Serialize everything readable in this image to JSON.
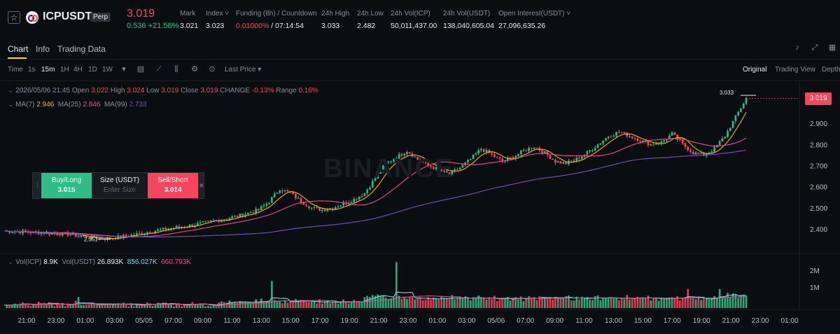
{
  "header": {
    "symbol": "ICPUSDT",
    "badge": "Perp",
    "last_price": "3.019",
    "change": "0.536 +21.58%",
    "stats": [
      {
        "label": "Mark",
        "value": "3.021"
      },
      {
        "label": "Index ˅",
        "value": "3.023"
      },
      {
        "label": "Funding (8h) / Countdown",
        "value": "0.01000%",
        "value2": " / 07:14:54"
      },
      {
        "label": "24h High",
        "value": "3.033"
      },
      {
        "label": "24h Low",
        "value": "2.482"
      },
      {
        "label": "24h Vol(ICP)",
        "value": "50,011,437.00"
      },
      {
        "label": "24h Vol(USDT)",
        "value": "138,040,605.04"
      },
      {
        "label": "Open Interest(USDT) ˅",
        "value": "27,096,635.26"
      }
    ]
  },
  "tabs": [
    "Chart",
    "Info",
    "Trading Data"
  ],
  "toolbar": {
    "intervals": [
      "Time",
      "1s",
      "15m",
      "1H",
      "4H",
      "1D",
      "1W"
    ],
    "selected_interval": "15m",
    "price_type": "Last Price",
    "views": [
      "Original",
      "Trading View",
      "Depth"
    ],
    "selected_view": "Original"
  },
  "ohlc": {
    "date": "2026/05/06 21:45",
    "open_label": "Open",
    "open": "3.022",
    "high_label": "High",
    "high": "3.024",
    "low_label": "Low",
    "low": "3.019",
    "close_label": "Close",
    "close": "3.019",
    "change_label": "CHANGE",
    "change": "-0.13%",
    "range_label": "Range",
    "range": "0.16%"
  },
  "ma": {
    "ma7_label": "MA(7)",
    "ma7": "2.946",
    "ma25_label": "MA(25)",
    "ma25": "2.846",
    "ma99_label": "MA(99)",
    "ma99": "2.733"
  },
  "volume_legend": {
    "icp_label": "Vol(ICP)",
    "icp": "8.9K",
    "usdt_label": "Vol(USDT)",
    "usdt": "26.893K",
    "v2": "856.027K",
    "v3": "660.793K"
  },
  "order_widget": {
    "buy_label": "Buy/Long",
    "buy_price": "3.015",
    "size_label": "Size (USDT)",
    "size_placeholder": "Enter Size",
    "sell_label": "Sell/Short",
    "sell_price": "3.014"
  },
  "current_price_tag": "3.019",
  "high_marker": "3.033",
  "low_marker": "2.351",
  "watermark": "BINANCE",
  "colors": {
    "up": "#2ebd85",
    "down": "#f6465d",
    "ma7": "#f0b90b",
    "ma25": "#e84e8e",
    "ma99": "#7c4dbe",
    "accent": "#fcd535"
  },
  "chart_data": {
    "type": "candlestick",
    "price_axis": [
      "2.900",
      "2.800",
      "2.700",
      "2.600",
      "2.500",
      "2.400"
    ],
    "volume_axis": [
      "2M",
      "1M"
    ],
    "x_ticks": [
      "21:00",
      "23:00",
      "01:00",
      "03:00",
      "05/05",
      "07:00",
      "09:00",
      "11:00",
      "13:00",
      "15:00",
      "17:00",
      "19:00",
      "21:00",
      "23:00",
      "01:00",
      "03:00",
      "05/06",
      "07:00",
      "09:00",
      "11:00",
      "13:00",
      "15:00",
      "17:00",
      "19:00",
      "21:00",
      "23:00",
      "01:00"
    ],
    "ylim": [
      2.33,
      3.06
    ],
    "close_path": [
      [
        0,
        2.39
      ],
      [
        8,
        2.385
      ],
      [
        16,
        2.38
      ],
      [
        24,
        2.375
      ],
      [
        32,
        2.36
      ],
      [
        40,
        2.355
      ],
      [
        48,
        2.37
      ],
      [
        56,
        2.39
      ],
      [
        64,
        2.405
      ],
      [
        72,
        2.42
      ],
      [
        80,
        2.44
      ],
      [
        88,
        2.46
      ],
      [
        96,
        2.49
      ],
      [
        100,
        2.53
      ],
      [
        104,
        2.59
      ],
      [
        108,
        2.57
      ],
      [
        112,
        2.53
      ],
      [
        116,
        2.5
      ],
      [
        120,
        2.49
      ],
      [
        124,
        2.5
      ],
      [
        128,
        2.52
      ],
      [
        132,
        2.54
      ],
      [
        136,
        2.57
      ],
      [
        140,
        2.64
      ],
      [
        144,
        2.71
      ],
      [
        148,
        2.74
      ],
      [
        152,
        2.77
      ],
      [
        156,
        2.73
      ],
      [
        160,
        2.7
      ],
      [
        164,
        2.68
      ],
      [
        168,
        2.66
      ],
      [
        172,
        2.69
      ],
      [
        176,
        2.73
      ],
      [
        180,
        2.78
      ],
      [
        184,
        2.75
      ],
      [
        188,
        2.72
      ],
      [
        192,
        2.74
      ],
      [
        196,
        2.77
      ],
      [
        200,
        2.79
      ],
      [
        204,
        2.76
      ],
      [
        208,
        2.72
      ],
      [
        212,
        2.71
      ],
      [
        216,
        2.73
      ],
      [
        220,
        2.76
      ],
      [
        224,
        2.8
      ],
      [
        228,
        2.84
      ],
      [
        232,
        2.86
      ],
      [
        236,
        2.84
      ],
      [
        240,
        2.82
      ],
      [
        244,
        2.8
      ],
      [
        248,
        2.81
      ],
      [
        252,
        2.85
      ],
      [
        256,
        2.8
      ],
      [
        260,
        2.76
      ],
      [
        264,
        2.75
      ],
      [
        268,
        2.78
      ],
      [
        272,
        2.84
      ],
      [
        276,
        2.93
      ],
      [
        280,
        3.019
      ]
    ]
  }
}
